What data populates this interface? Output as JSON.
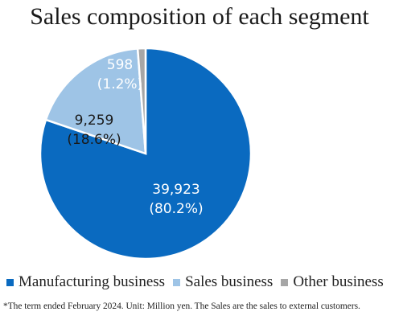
{
  "chart_data": {
    "type": "pie",
    "title": "Sales composition of each segment",
    "categories": [
      "Manufacturing business",
      "Sales business",
      "Other business"
    ],
    "values": [
      39923,
      9259,
      598
    ],
    "value_labels": [
      "39,923",
      "9,259",
      "598"
    ],
    "percent_labels": [
      "(80.2%)",
      "(18.6%)",
      "(1.2%)"
    ],
    "colors": [
      "#0a6ac0",
      "#9ec4e6",
      "#a6a6a6"
    ],
    "label_colors": [
      "#ffffff",
      "#1a1a1a",
      "#ffffff"
    ],
    "legend_position": "bottom"
  },
  "footnote": "*The term ended February 2024. Unit: Million yen. The Sales are the sales to external customers."
}
